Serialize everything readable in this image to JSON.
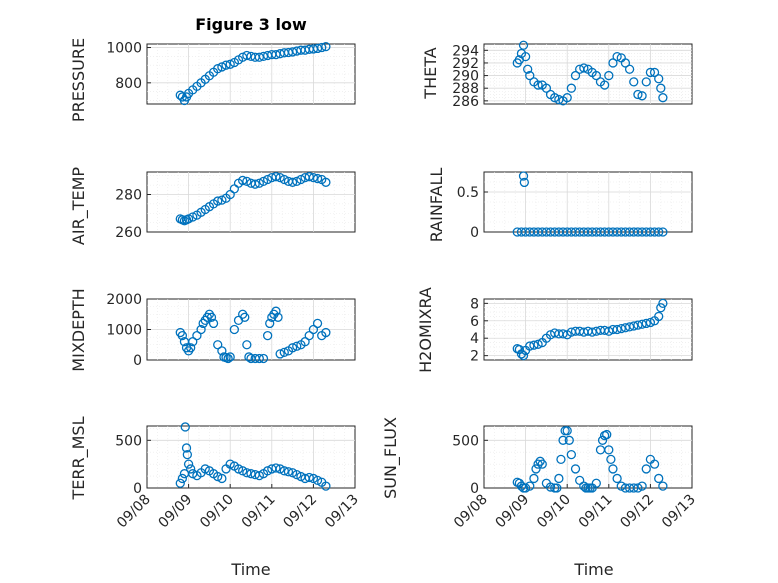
{
  "figure": {
    "title": "Figure 3 low",
    "marker_color": "#0072BD"
  },
  "chart_data": [
    {
      "type": "scatter",
      "id": "pressure",
      "ylabel": "PRESSURE",
      "ylim": [
        680,
        1020
      ],
      "yticks": [
        800,
        1000
      ],
      "show_xticks": false,
      "x_days": [
        8.8,
        8.85,
        8.9,
        8.95,
        9.0,
        9.1,
        9.2,
        9.3,
        9.4,
        9.5,
        9.6,
        9.7,
        9.8,
        9.9,
        10.0,
        10.1,
        10.2,
        10.3,
        10.4,
        10.5,
        10.6,
        10.7,
        10.8,
        10.9,
        11.0,
        11.1,
        11.2,
        11.3,
        11.4,
        11.5,
        11.6,
        11.7,
        11.8,
        11.9,
        12.0,
        12.1,
        12.2,
        12.3
      ],
      "values": [
        730,
        720,
        700,
        720,
        740,
        760,
        780,
        800,
        820,
        840,
        860,
        880,
        890,
        900,
        905,
        915,
        930,
        945,
        955,
        950,
        945,
        945,
        950,
        955,
        960,
        960,
        965,
        970,
        972,
        975,
        980,
        985,
        985,
        990,
        992,
        995,
        1000,
        1005
      ]
    },
    {
      "type": "scatter",
      "id": "theta",
      "ylabel": "THETA",
      "ylim": [
        285.5,
        295
      ],
      "yticks": [
        286,
        288,
        290,
        292,
        294
      ],
      "show_xticks": false,
      "x_days": [
        8.8,
        8.85,
        8.9,
        8.95,
        9.0,
        9.05,
        9.1,
        9.2,
        9.3,
        9.4,
        9.5,
        9.6,
        9.7,
        9.8,
        9.9,
        10.0,
        10.1,
        10.2,
        10.3,
        10.4,
        10.5,
        10.6,
        10.7,
        10.8,
        10.9,
        11.0,
        11.1,
        11.2,
        11.3,
        11.4,
        11.5,
        11.6,
        11.7,
        11.8,
        11.9,
        12.0,
        12.1,
        12.2,
        12.25,
        12.3
      ],
      "values": [
        292,
        292.5,
        293.5,
        294.8,
        293,
        291,
        290,
        289,
        288.5,
        288.5,
        288,
        287,
        286.5,
        286.2,
        286,
        286.5,
        288,
        290,
        291,
        291.2,
        291,
        290.5,
        290,
        289,
        288.5,
        290,
        292,
        293,
        292.8,
        292,
        291,
        289,
        287,
        286.8,
        289,
        290.5,
        290.5,
        289.5,
        288,
        286.5
      ]
    },
    {
      "type": "scatter",
      "id": "air-temp",
      "ylabel": "AIR_TEMP",
      "ylim": [
        260,
        292
      ],
      "yticks": [
        260,
        280
      ],
      "show_xticks": false,
      "x_days": [
        8.8,
        8.85,
        8.9,
        8.95,
        9.0,
        9.1,
        9.2,
        9.3,
        9.4,
        9.5,
        9.6,
        9.7,
        9.8,
        9.9,
        10.0,
        10.1,
        10.2,
        10.3,
        10.4,
        10.5,
        10.6,
        10.7,
        10.8,
        10.9,
        11.0,
        11.1,
        11.2,
        11.3,
        11.4,
        11.5,
        11.6,
        11.7,
        11.8,
        11.9,
        12.0,
        12.1,
        12.2,
        12.3
      ],
      "values": [
        267,
        266.5,
        266,
        266.5,
        267,
        268,
        269,
        270.5,
        272,
        273.5,
        275,
        276.5,
        277,
        278,
        280,
        283,
        286,
        287.5,
        287,
        286,
        285.5,
        286,
        287,
        288,
        289,
        289.5,
        289,
        288,
        287,
        286.5,
        287,
        288,
        289,
        289.5,
        289,
        288.5,
        288,
        286.5
      ]
    },
    {
      "type": "scatter",
      "id": "rainfall",
      "ylabel": "RAINFALL",
      "ylim": [
        0,
        0.75
      ],
      "yticks": [
        0,
        0.5
      ],
      "show_xticks": false,
      "x_days": [
        8.8,
        8.9,
        8.95,
        8.97,
        9.0,
        9.1,
        9.2,
        9.3,
        9.4,
        9.5,
        9.6,
        9.7,
        9.8,
        9.9,
        10.0,
        10.1,
        10.2,
        10.3,
        10.4,
        10.5,
        10.6,
        10.7,
        10.8,
        10.9,
        11.0,
        11.1,
        11.2,
        11.3,
        11.4,
        11.5,
        11.6,
        11.7,
        11.8,
        11.9,
        12.0,
        12.1,
        12.2,
        12.3
      ],
      "values": [
        0,
        0,
        0.7,
        0.62,
        0,
        0,
        0,
        0,
        0,
        0,
        0,
        0,
        0,
        0,
        0,
        0,
        0,
        0,
        0,
        0,
        0,
        0,
        0,
        0,
        0,
        0,
        0,
        0,
        0,
        0,
        0,
        0,
        0,
        0,
        0,
        0,
        0,
        0
      ]
    },
    {
      "type": "scatter",
      "id": "mixdepth",
      "ylabel": "MIXDEPTH",
      "ylim": [
        0,
        2000
      ],
      "yticks": [
        0,
        1000,
        2000
      ],
      "show_xticks": false,
      "x_days": [
        8.8,
        8.85,
        8.9,
        8.95,
        9.0,
        9.05,
        9.1,
        9.2,
        9.3,
        9.35,
        9.4,
        9.45,
        9.5,
        9.55,
        9.6,
        9.7,
        9.8,
        9.85,
        9.9,
        9.95,
        10.0,
        10.1,
        10.2,
        10.3,
        10.35,
        10.4,
        10.45,
        10.5,
        10.6,
        10.7,
        10.8,
        10.9,
        10.95,
        11.0,
        11.05,
        11.1,
        11.15,
        11.2,
        11.3,
        11.4,
        11.5,
        11.6,
        11.7,
        11.8,
        11.9,
        12.0,
        12.1,
        12.2,
        12.3
      ],
      "values": [
        900,
        800,
        600,
        400,
        300,
        400,
        600,
        800,
        1000,
        1200,
        1300,
        1400,
        1500,
        1400,
        1200,
        500,
        300,
        100,
        80,
        50,
        100,
        1000,
        1300,
        1500,
        1400,
        500,
        100,
        50,
        50,
        50,
        50,
        800,
        1200,
        1400,
        1500,
        1600,
        1400,
        200,
        250,
        300,
        400,
        450,
        500,
        600,
        800,
        1000,
        1200,
        800,
        900
      ]
    },
    {
      "type": "scatter",
      "id": "h2omixra",
      "ylabel": "H2OMIXRA",
      "ylim": [
        1.5,
        8.5
      ],
      "yticks": [
        2,
        4,
        6,
        8
      ],
      "show_xticks": false,
      "x_days": [
        8.8,
        8.85,
        8.9,
        8.95,
        9.0,
        9.1,
        9.2,
        9.3,
        9.4,
        9.5,
        9.6,
        9.7,
        9.8,
        9.9,
        10.0,
        10.1,
        10.2,
        10.3,
        10.4,
        10.5,
        10.6,
        10.7,
        10.8,
        10.9,
        11.0,
        11.1,
        11.2,
        11.3,
        11.4,
        11.5,
        11.6,
        11.7,
        11.8,
        11.9,
        12.0,
        12.1,
        12.2,
        12.25,
        12.3
      ],
      "values": [
        2.8,
        2.7,
        2.2,
        2.0,
        2.6,
        3.1,
        3.2,
        3.3,
        3.5,
        4.0,
        4.4,
        4.6,
        4.5,
        4.5,
        4.4,
        4.7,
        4.8,
        4.8,
        4.7,
        4.8,
        4.7,
        4.8,
        4.9,
        4.9,
        4.8,
        5.0,
        5.0,
        5.1,
        5.2,
        5.3,
        5.4,
        5.5,
        5.6,
        5.7,
        5.8,
        6.0,
        6.5,
        7.5,
        8.0
      ]
    },
    {
      "type": "scatter",
      "id": "terr-msl",
      "ylabel": "TERR_MSL",
      "xlabel": "Time",
      "ylim": [
        0,
        650
      ],
      "yticks": [
        0,
        500
      ],
      "show_xticks": true,
      "x_days": [
        8.8,
        8.85,
        8.9,
        8.92,
        8.95,
        8.97,
        9.0,
        9.05,
        9.1,
        9.2,
        9.3,
        9.4,
        9.5,
        9.6,
        9.7,
        9.8,
        9.9,
        10.0,
        10.1,
        10.2,
        10.3,
        10.4,
        10.5,
        10.6,
        10.7,
        10.8,
        10.9,
        11.0,
        11.1,
        11.2,
        11.3,
        11.4,
        11.5,
        11.6,
        11.7,
        11.8,
        11.9,
        12.0,
        12.1,
        12.2,
        12.3
      ],
      "values": [
        50,
        100,
        150,
        640,
        420,
        350,
        250,
        200,
        150,
        130,
        160,
        200,
        180,
        150,
        120,
        100,
        200,
        250,
        230,
        200,
        180,
        160,
        150,
        140,
        130,
        150,
        180,
        200,
        210,
        200,
        180,
        170,
        160,
        140,
        120,
        100,
        110,
        100,
        80,
        60,
        20
      ]
    },
    {
      "type": "scatter",
      "id": "sun-flux",
      "ylabel": "SUN_FLUX",
      "xlabel": "Time",
      "ylim": [
        0,
        650
      ],
      "yticks": [
        0,
        500
      ],
      "show_xticks": true,
      "x_days": [
        8.8,
        8.85,
        8.9,
        8.95,
        9.0,
        9.1,
        9.2,
        9.25,
        9.3,
        9.35,
        9.4,
        9.5,
        9.6,
        9.7,
        9.75,
        9.8,
        9.85,
        9.9,
        9.95,
        10.0,
        10.05,
        10.1,
        10.2,
        10.3,
        10.4,
        10.45,
        10.5,
        10.55,
        10.6,
        10.7,
        10.8,
        10.85,
        10.9,
        10.95,
        11.0,
        11.05,
        11.1,
        11.2,
        11.3,
        11.4,
        11.5,
        11.6,
        11.7,
        11.8,
        11.9,
        12.0,
        12.1,
        12.2,
        12.3
      ],
      "values": [
        60,
        50,
        20,
        0,
        0,
        20,
        100,
        200,
        250,
        280,
        250,
        50,
        10,
        0,
        0,
        100,
        300,
        500,
        600,
        600,
        500,
        350,
        200,
        80,
        20,
        0,
        0,
        0,
        0,
        50,
        400,
        500,
        550,
        560,
        400,
        300,
        200,
        100,
        20,
        0,
        0,
        0,
        0,
        20,
        200,
        300,
        250,
        100,
        20
      ]
    }
  ],
  "x_axis": {
    "ticks": [
      8,
      9,
      10,
      11,
      12,
      13
    ],
    "tick_labels": [
      "09/08",
      "09/09",
      "09/10",
      "09/11",
      "09/12",
      "09/13"
    ],
    "minor_ticks": [
      8.25,
      8.5,
      8.75,
      9.25,
      9.5,
      9.75,
      10.25,
      10.5,
      10.75,
      11.25,
      11.5,
      11.75,
      12.25,
      12.5,
      12.75
    ]
  }
}
